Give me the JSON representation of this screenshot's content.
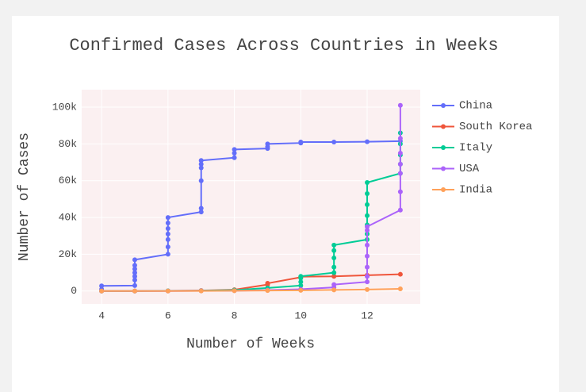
{
  "chart_data": {
    "type": "line",
    "title": "Confirmed Cases Across Countries in Weeks",
    "x_label": "Number of Weeks",
    "y_label": "Number of Cases",
    "xlim": [
      3.4,
      13.6
    ],
    "ylim": [
      -7000,
      109500
    ],
    "xticks": [
      4,
      6,
      8,
      10,
      12
    ],
    "yticks": [
      0,
      {
        "value": 20000,
        "label": "20k"
      },
      {
        "value": 40000,
        "label": "40k"
      },
      {
        "value": 60000,
        "label": "60k"
      },
      {
        "value": 80000,
        "label": "80k"
      },
      {
        "value": 100000,
        "label": "100k"
      }
    ],
    "grid": true,
    "legend": "right",
    "series": [
      {
        "name": "China",
        "color": "#636efa",
        "x": [
          4,
          4,
          5,
          5,
          5,
          5,
          5,
          5,
          5,
          6,
          6,
          6,
          6,
          6,
          6,
          6,
          7,
          7,
          7,
          7,
          7,
          7,
          8,
          8,
          8,
          9,
          9,
          9,
          10,
          10,
          11,
          12,
          13
        ],
        "values": [
          1000,
          2800,
          3000,
          6000,
          8000,
          10000,
          12000,
          14000,
          17000,
          20000,
          24000,
          28000,
          31000,
          34000,
          37000,
          40000,
          43000,
          45000,
          60000,
          67000,
          69000,
          71000,
          72500,
          75000,
          77000,
          77500,
          78500,
          80000,
          80500,
          81000,
          81000,
          81200,
          81500
        ]
      },
      {
        "name": "South Korea",
        "color": "#ef553b",
        "x": [
          4,
          5,
          6,
          7,
          8,
          9,
          9,
          10,
          10,
          11,
          12,
          13
        ],
        "values": [
          0,
          0,
          100,
          300,
          700,
          3500,
          4200,
          7500,
          7800,
          8000,
          8600,
          9100
        ]
      },
      {
        "name": "Italy",
        "color": "#00cc96",
        "x": [
          4,
          5,
          6,
          7,
          8,
          9,
          10,
          10,
          10,
          10,
          11,
          11,
          11,
          11,
          11,
          12,
          12,
          12,
          12,
          12,
          12,
          12,
          13,
          13,
          13,
          13,
          13
        ],
        "values": [
          0,
          0,
          100,
          200,
          500,
          1700,
          3000,
          5000,
          7000,
          8000,
          10000,
          13000,
          18000,
          22000,
          25000,
          28000,
          31000,
          36000,
          41000,
          47000,
          53000,
          59000,
          64000,
          69000,
          74000,
          80000,
          86000
        ]
      },
      {
        "name": "USA",
        "color": "#ab63fa",
        "x": [
          4,
          5,
          6,
          7,
          8,
          9,
          10,
          11,
          11,
          12,
          12,
          12,
          12,
          12,
          12,
          12,
          13,
          13,
          13,
          13,
          13,
          13,
          13
        ],
        "values": [
          0,
          0,
          0,
          100,
          200,
          500,
          1000,
          2000,
          3500,
          5000,
          8000,
          13000,
          19000,
          25000,
          33000,
          35000,
          44000,
          54000,
          64000,
          69000,
          75000,
          83000,
          101000
        ]
      },
      {
        "name": "India",
        "color": "#ffa15a",
        "x": [
          4,
          5,
          6,
          7,
          8,
          9,
          10,
          11,
          12,
          13
        ],
        "values": [
          0,
          0,
          0,
          50,
          150,
          300,
          400,
          600,
          800,
          1200
        ]
      }
    ]
  }
}
